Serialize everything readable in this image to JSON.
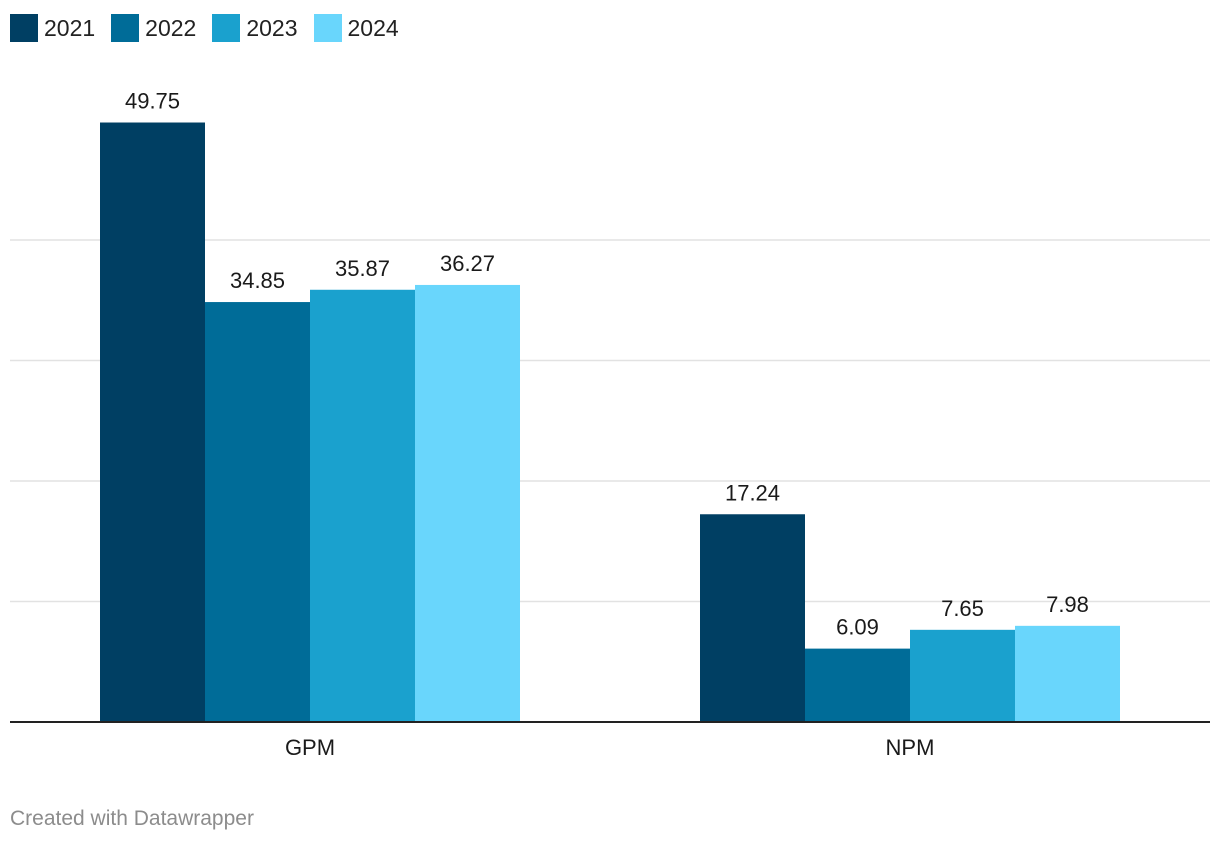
{
  "chart_data": {
    "type": "bar",
    "categories": [
      "GPM",
      "NPM"
    ],
    "series": [
      {
        "name": "2021",
        "color": "#003f63",
        "values": [
          49.75,
          17.24
        ]
      },
      {
        "name": "2022",
        "color": "#006c98",
        "values": [
          34.85,
          6.09
        ]
      },
      {
        "name": "2023",
        "color": "#1aa1ce",
        "values": [
          35.87,
          7.65
        ]
      },
      {
        "name": "2024",
        "color": "#69d6fc",
        "values": [
          36.27,
          7.98
        ]
      }
    ],
    "ylim": [
      0,
      50
    ],
    "gridlines": [
      10,
      20,
      30,
      40
    ],
    "grid": true,
    "legend_position": "top-left",
    "title": "",
    "xlabel": "",
    "ylabel": ""
  },
  "footer": {
    "credit": "Created with Datawrapper"
  }
}
